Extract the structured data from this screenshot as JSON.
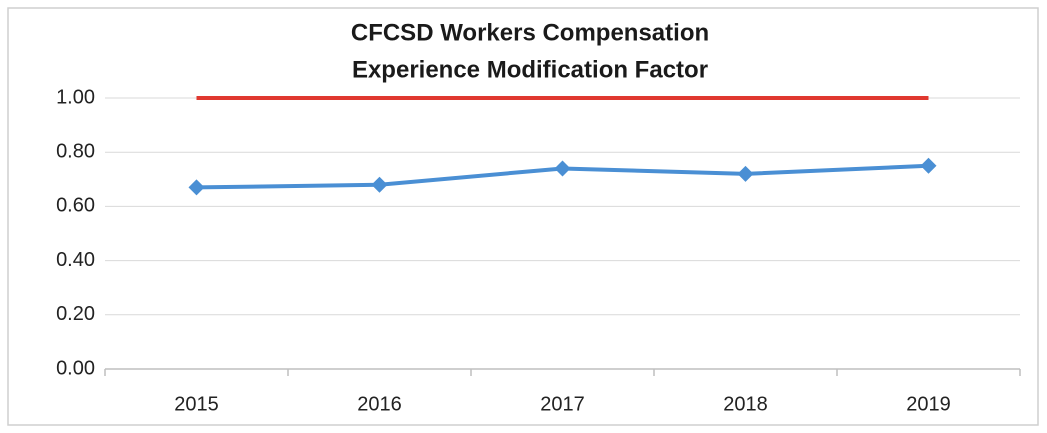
{
  "chart_data": {
    "type": "line",
    "title": [
      "CFCSD Workers Compensation",
      "Experience Modification Factor"
    ],
    "categories": [
      "2015",
      "2016",
      "2017",
      "2018",
      "2019"
    ],
    "series": [
      {
        "color": "#4a8fd4",
        "marker": "diamond",
        "values": [
          0.67,
          0.68,
          0.74,
          0.72,
          0.75
        ]
      },
      {
        "color": "#e0382f",
        "marker": "none",
        "values": [
          1.0,
          1.0,
          1.0,
          1.0,
          1.0
        ]
      }
    ],
    "ylim": [
      0,
      1
    ],
    "yticks": [
      {
        "value": 0,
        "label": "0.00"
      },
      {
        "value": 0.2,
        "label": "0.20"
      },
      {
        "value": 0.4,
        "label": "0.40"
      },
      {
        "value": 0.6,
        "label": "0.60"
      },
      {
        "value": 0.8,
        "label": "0.80"
      },
      {
        "value": 1,
        "label": "1.00"
      }
    ],
    "grid": true
  }
}
